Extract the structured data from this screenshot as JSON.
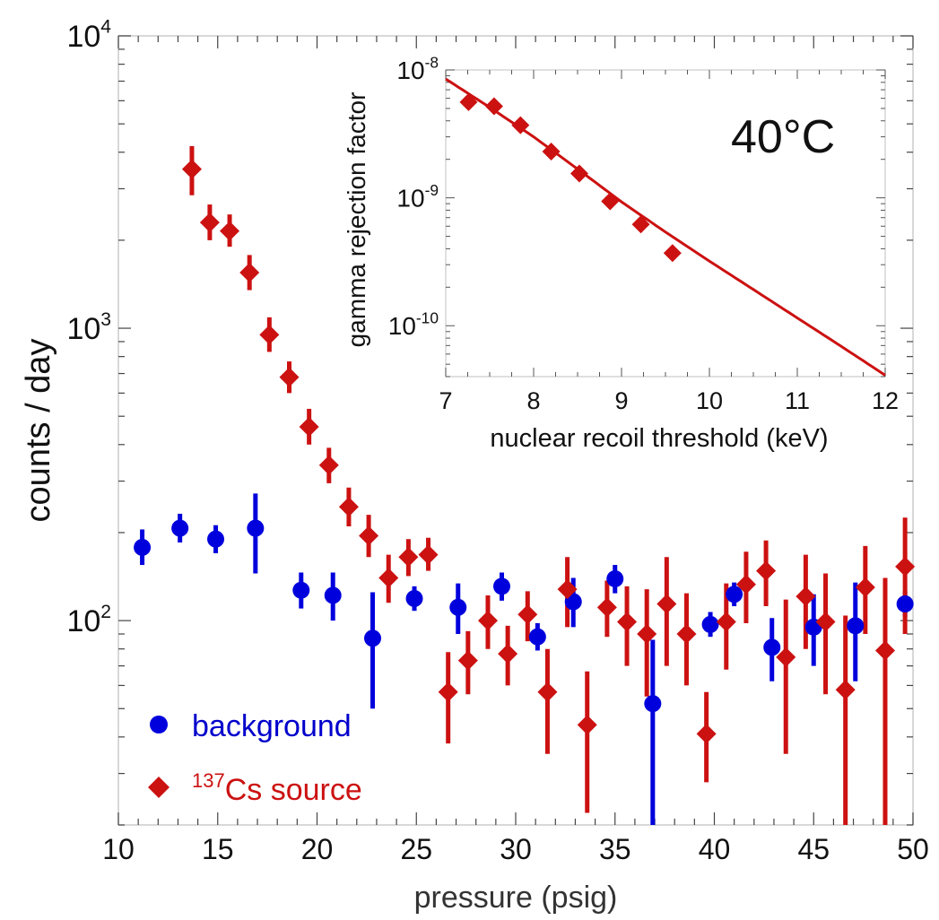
{
  "chart_data": [
    {
      "type": "scatter",
      "xlabel": "pressure (psig)",
      "ylabel": "counts / day",
      "xlim": [
        10,
        50
      ],
      "ylim": [
        20,
        10000
      ],
      "yscale": "log",
      "x_ticks": [
        "10",
        "15",
        "20",
        "25",
        "30",
        "35",
        "40",
        "45",
        "50"
      ],
      "y_ticks": [
        {
          "value": 100,
          "base": "10",
          "exp": "2"
        },
        {
          "value": 1000,
          "base": "10",
          "exp": "3"
        },
        {
          "value": 10000,
          "base": "10",
          "exp": "4"
        }
      ],
      "legend_position": "bottom-left",
      "series": [
        {
          "name": "background",
          "color": "#0000dd",
          "marker": "circle",
          "points": [
            {
              "x": 11.2,
              "y": 178,
              "lo": 155,
              "hi": 205
            },
            {
              "x": 13.1,
              "y": 207,
              "lo": 185,
              "hi": 232
            },
            {
              "x": 14.9,
              "y": 190,
              "lo": 170,
              "hi": 212
            },
            {
              "x": 16.9,
              "y": 207,
              "lo": 145,
              "hi": 272
            },
            {
              "x": 19.2,
              "y": 127,
              "lo": 110,
              "hi": 146
            },
            {
              "x": 20.8,
              "y": 122,
              "lo": 100,
              "hi": 146
            },
            {
              "x": 22.8,
              "y": 87,
              "lo": 50,
              "hi": 125
            },
            {
              "x": 24.9,
              "y": 119,
              "lo": 108,
              "hi": 131
            },
            {
              "x": 27.1,
              "y": 111,
              "lo": 90,
              "hi": 134
            },
            {
              "x": 29.3,
              "y": 131,
              "lo": 117,
              "hi": 146
            },
            {
              "x": 31.1,
              "y": 88,
              "lo": 79,
              "hi": 98
            },
            {
              "x": 32.9,
              "y": 116,
              "lo": 95,
              "hi": 140
            },
            {
              "x": 35.0,
              "y": 139,
              "lo": 124,
              "hi": 155
            },
            {
              "x": 36.9,
              "y": 52,
              "lo": 20,
              "hi": 86
            },
            {
              "x": 39.8,
              "y": 97,
              "lo": 88,
              "hi": 107
            },
            {
              "x": 41.0,
              "y": 123,
              "lo": 112,
              "hi": 135
            },
            {
              "x": 42.9,
              "y": 81,
              "lo": 62,
              "hi": 102
            },
            {
              "x": 45.0,
              "y": 95,
              "lo": 70,
              "hi": 123
            },
            {
              "x": 47.1,
              "y": 96,
              "lo": 62,
              "hi": 135
            },
            {
              "x": 49.6,
              "y": 114,
              "lo": 103,
              "hi": 126
            }
          ]
        },
        {
          "name": "Cs source",
          "superscript": "137",
          "color": "#cc1111",
          "marker": "diamond",
          "points": [
            {
              "x": 13.7,
              "y": 3500,
              "lo": 2850,
              "hi": 4200
            },
            {
              "x": 14.6,
              "y": 2300,
              "lo": 2000,
              "hi": 2650
            },
            {
              "x": 15.6,
              "y": 2150,
              "lo": 1900,
              "hi": 2450
            },
            {
              "x": 16.6,
              "y": 1550,
              "lo": 1350,
              "hi": 1780
            },
            {
              "x": 17.6,
              "y": 950,
              "lo": 830,
              "hi": 1090
            },
            {
              "x": 18.6,
              "y": 680,
              "lo": 600,
              "hi": 770
            },
            {
              "x": 19.6,
              "y": 460,
              "lo": 400,
              "hi": 530
            },
            {
              "x": 20.6,
              "y": 340,
              "lo": 295,
              "hi": 390
            },
            {
              "x": 21.6,
              "y": 245,
              "lo": 210,
              "hi": 285
            },
            {
              "x": 22.6,
              "y": 195,
              "lo": 165,
              "hi": 230
            },
            {
              "x": 23.6,
              "y": 140,
              "lo": 115,
              "hi": 168
            },
            {
              "x": 24.6,
              "y": 165,
              "lo": 142,
              "hi": 190
            },
            {
              "x": 25.6,
              "y": 168,
              "lo": 148,
              "hi": 192
            },
            {
              "x": 26.6,
              "y": 57,
              "lo": 38,
              "hi": 78
            },
            {
              "x": 27.6,
              "y": 73,
              "lo": 56,
              "hi": 92
            },
            {
              "x": 28.6,
              "y": 100,
              "lo": 80,
              "hi": 122
            },
            {
              "x": 29.6,
              "y": 77,
              "lo": 60,
              "hi": 96
            },
            {
              "x": 30.6,
              "y": 105,
              "lo": 85,
              "hi": 126
            },
            {
              "x": 31.6,
              "y": 57,
              "lo": 35,
              "hi": 80
            },
            {
              "x": 32.6,
              "y": 128,
              "lo": 95,
              "hi": 165
            },
            {
              "x": 33.6,
              "y": 44,
              "lo": 22,
              "hi": 67
            },
            {
              "x": 34.6,
              "y": 111,
              "lo": 88,
              "hi": 137
            },
            {
              "x": 35.6,
              "y": 99,
              "lo": 70,
              "hi": 131
            },
            {
              "x": 36.6,
              "y": 90,
              "lo": 55,
              "hi": 128
            },
            {
              "x": 37.6,
              "y": 114,
              "lo": 70,
              "hi": 165
            },
            {
              "x": 38.6,
              "y": 90,
              "lo": 60,
              "hi": 124
            },
            {
              "x": 39.6,
              "y": 41,
              "lo": 28,
              "hi": 57
            },
            {
              "x": 40.6,
              "y": 99,
              "lo": 68,
              "hi": 134
            },
            {
              "x": 41.6,
              "y": 133,
              "lo": 98,
              "hi": 172
            },
            {
              "x": 42.6,
              "y": 148,
              "lo": 112,
              "hi": 188
            },
            {
              "x": 43.6,
              "y": 75,
              "lo": 35,
              "hi": 118
            },
            {
              "x": 44.6,
              "y": 121,
              "lo": 80,
              "hi": 168
            },
            {
              "x": 45.6,
              "y": 99,
              "lo": 56,
              "hi": 145
            },
            {
              "x": 46.6,
              "y": 58,
              "lo": 20,
              "hi": 104
            },
            {
              "x": 47.6,
              "y": 130,
              "lo": 90,
              "hi": 180
            },
            {
              "x": 48.6,
              "y": 79,
              "lo": 20,
              "hi": 140
            },
            {
              "x": 49.6,
              "y": 153,
              "lo": 90,
              "hi": 225
            }
          ]
        }
      ]
    },
    {
      "type": "scatter",
      "inset": true,
      "annotation": "40°C",
      "xlabel": "nuclear recoil threshold (keV)",
      "ylabel": "gamma rejection factor",
      "xlim": [
        7,
        12
      ],
      "ylim": [
        4e-11,
        1e-08
      ],
      "yscale": "log",
      "x_ticks": [
        "7",
        "8",
        "9",
        "10",
        "11",
        "12"
      ],
      "y_ticks": [
        {
          "value": 1e-08,
          "base": "10",
          "exp": "-8"
        },
        {
          "value": 1e-09,
          "base": "10",
          "exp": "-9"
        },
        {
          "value": 1e-10,
          "base": "10",
          "exp": "-10"
        }
      ],
      "color": "#cc1111",
      "points": [
        {
          "x": 7.26,
          "y": 5.6e-09
        },
        {
          "x": 7.55,
          "y": 5.2e-09
        },
        {
          "x": 7.85,
          "y": 3.7e-09
        },
        {
          "x": 8.2,
          "y": 2.3e-09
        },
        {
          "x": 8.52,
          "y": 1.55e-09
        },
        {
          "x": 8.87,
          "y": 9.4e-10
        },
        {
          "x": 9.22,
          "y": 6.2e-10
        },
        {
          "x": 9.58,
          "y": 3.7e-10
        }
      ],
      "fit_curve": [
        {
          "x": 7.0,
          "y": 8.5e-09
        },
        {
          "x": 7.5,
          "y": 5.1e-09
        },
        {
          "x": 8.0,
          "y": 3e-09
        },
        {
          "x": 8.5,
          "y": 1.68e-09
        },
        {
          "x": 9.0,
          "y": 9.3e-10
        },
        {
          "x": 9.5,
          "y": 5.4e-10
        },
        {
          "x": 10.0,
          "y": 3.2e-10
        },
        {
          "x": 10.5,
          "y": 1.92e-10
        },
        {
          "x": 11.0,
          "y": 1.15e-10
        },
        {
          "x": 11.5,
          "y": 6.9e-11
        },
        {
          "x": 12.0,
          "y": 4.1e-11
        }
      ]
    }
  ]
}
